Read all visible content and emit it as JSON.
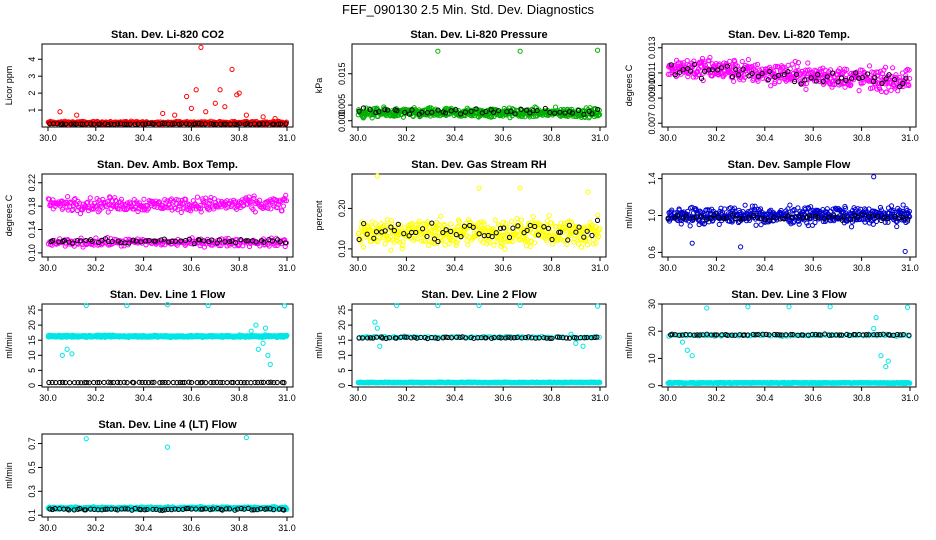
{
  "page": {
    "title": "FEF_090130  2.5 Min. Std. Dev. Diagnostics"
  },
  "chart_data": [
    {
      "type": "scatter",
      "title": "Stan. Dev. Li-820 CO2",
      "ylabel": "Licor ppm",
      "xlim": [
        30.0,
        31.0
      ],
      "ylim": [
        0.0,
        4.9
      ],
      "xticks": [
        30.0,
        30.2,
        30.4,
        30.6,
        30.8,
        31.0
      ],
      "yticks": [
        1,
        2,
        3,
        4
      ],
      "xtick_labels": [
        "30.0",
        "30.2",
        "30.4",
        "30.6",
        "30.8",
        "31.0"
      ],
      "ytick_labels": [
        "1",
        "2",
        "3",
        "4"
      ],
      "series": [
        {
          "name": "primary",
          "color": "#ff0000",
          "base": 0.25,
          "jitter": 0.12,
          "n": 420,
          "extra": [
            [
              30.05,
              0.9
            ],
            [
              30.12,
              0.7
            ],
            [
              30.48,
              0.8
            ],
            [
              30.53,
              0.7
            ],
            [
              30.58,
              1.8
            ],
            [
              30.6,
              1.1
            ],
            [
              30.62,
              2.2
            ],
            [
              30.64,
              4.7
            ],
            [
              30.66,
              0.9
            ],
            [
              30.7,
              1.4
            ],
            [
              30.72,
              2.2
            ],
            [
              30.74,
              1.2
            ],
            [
              30.77,
              3.4
            ],
            [
              30.79,
              1.9
            ],
            [
              30.8,
              2.0
            ],
            [
              30.83,
              0.7
            ],
            [
              30.9,
              0.6
            ],
            [
              30.95,
              0.5
            ]
          ]
        },
        {
          "name": "secondary",
          "color": "#000000",
          "base": 0.18,
          "jitter": 0.04,
          "n": 70
        }
      ]
    },
    {
      "type": "scatter",
      "title": "Stan. Dev. Li-820 Pressure",
      "ylabel": "kPa",
      "xlim": [
        30.0,
        31.0
      ],
      "ylim": [
        -0.002,
        0.0245
      ],
      "xticks": [
        30.0,
        30.2,
        30.4,
        30.6,
        30.8,
        31.0
      ],
      "yticks": [
        0.0,
        0.005,
        0.015
      ],
      "xtick_labels": [
        "30.0",
        "30.2",
        "30.4",
        "30.6",
        "30.8",
        "31.0"
      ],
      "ytick_labels": [
        "0.000",
        "0.005",
        "0.015"
      ],
      "series": [
        {
          "name": "primary",
          "color": "#00b000",
          "base": 0.0025,
          "jitter": 0.0022,
          "n": 520,
          "extra": [
            [
              30.33,
              0.0222
            ],
            [
              30.67,
              0.0222
            ],
            [
              30.99,
              0.0225
            ]
          ]
        },
        {
          "name": "secondary",
          "color": "#000000",
          "base": 0.003,
          "jitter": 0.0015,
          "n": 50
        }
      ]
    },
    {
      "type": "scatter",
      "title": "Stan. Dev. Li-820 Temp.",
      "ylabel": "degrees C",
      "xlim": [
        30.0,
        31.0
      ],
      "ylim": [
        0.0067,
        0.0133
      ],
      "xticks": [
        30.0,
        30.2,
        30.4,
        30.6,
        30.8,
        31.0
      ],
      "yticks": [
        0.007,
        0.009,
        0.01,
        0.011,
        0.013
      ],
      "xtick_labels": [
        "30.0",
        "30.2",
        "30.4",
        "30.6",
        "30.8",
        "31.0"
      ],
      "ytick_labels": [
        "0.007",
        "0.009",
        "0.010",
        "0.011",
        "0.013"
      ],
      "series": [
        {
          "name": "primary",
          "color": "#ff00ff",
          "base": 0.0115,
          "jitter": 0.0013,
          "n": 480,
          "drift": -0.0012
        },
        {
          "name": "secondary",
          "color": "#000000",
          "base": 0.0112,
          "jitter": 0.0009,
          "n": 55,
          "drift": -0.0008
        }
      ]
    },
    {
      "type": "scatter",
      "title": "Stan. Dev. Amb. Box Temp.",
      "ylabel": "degrees C",
      "xlim": [
        30.0,
        31.0
      ],
      "ylim": [
        0.093,
        0.235
      ],
      "xticks": [
        30.0,
        30.2,
        30.4,
        30.6,
        30.8,
        31.0
      ],
      "yticks": [
        0.1,
        0.14,
        0.18,
        0.22
      ],
      "xtick_labels": [
        "30.0",
        "30.2",
        "30.4",
        "30.6",
        "30.8",
        "31.0"
      ],
      "ytick_labels": [
        "0.10",
        "0.14",
        "0.18",
        "0.22"
      ],
      "series": [
        {
          "name": "primary",
          "color": "#ff00ff",
          "base": 0.183,
          "jitter": 0.018,
          "n": 320
        },
        {
          "name": "secondary",
          "color": "#ff00ff",
          "base": 0.118,
          "jitter": 0.01,
          "n": 240
        },
        {
          "name": "black",
          "color": "#000000",
          "base": 0.12,
          "jitter": 0.007,
          "n": 60
        }
      ]
    },
    {
      "type": "scatter",
      "title": "Stan. Dev. Gas Stream RH",
      "ylabel": "percent",
      "xlim": [
        30.0,
        31.0
      ],
      "ylim": [
        0.08,
        0.285
      ],
      "xticks": [
        30.0,
        30.2,
        30.4,
        30.6,
        30.8,
        31.0
      ],
      "yticks": [
        0.1,
        0.2
      ],
      "xtick_labels": [
        "30.0",
        "30.2",
        "30.4",
        "30.6",
        "30.8",
        "31.0"
      ],
      "ytick_labels": [
        "0.10",
        "0.20"
      ],
      "series": [
        {
          "name": "primary",
          "color": "#ffff00",
          "base": 0.14,
          "jitter": 0.05,
          "n": 480,
          "extra": [
            [
              30.08,
              0.28
            ],
            [
              30.5,
              0.25
            ],
            [
              30.95,
              0.24
            ],
            [
              30.67,
              0.25
            ]
          ]
        },
        {
          "name": "secondary",
          "color": "#000000",
          "base": 0.14,
          "jitter": 0.04,
          "n": 55
        }
      ]
    },
    {
      "type": "scatter",
      "title": "Stan. Dev. Sample Flow",
      "ylabel": "ml/min",
      "xlim": [
        30.0,
        31.0
      ],
      "ylim": [
        0.55,
        1.45
      ],
      "xticks": [
        30.0,
        30.2,
        30.4,
        30.6,
        30.8,
        31.0
      ],
      "yticks": [
        0.6,
        1.0,
        1.4
      ],
      "xtick_labels": [
        "30.0",
        "30.2",
        "30.4",
        "30.6",
        "30.8",
        "31.0"
      ],
      "ytick_labels": [
        "0.6",
        "1.0",
        "1.4"
      ],
      "series": [
        {
          "name": "primary",
          "color": "#0000d0",
          "base": 1.0,
          "jitter": 0.13,
          "n": 540,
          "extra": [
            [
              30.85,
              1.42
            ],
            [
              30.1,
              0.7
            ],
            [
              30.3,
              0.66
            ],
            [
              30.98,
              0.61
            ]
          ]
        },
        {
          "name": "secondary",
          "color": "#000000",
          "base": 0.98,
          "jitter": 0.05,
          "n": 55
        }
      ]
    },
    {
      "type": "scatter",
      "title": "Stan. Dev. Line 1 Flow",
      "ylabel": "ml/min",
      "xlim": [
        30.0,
        31.0
      ],
      "ylim": [
        -0.5,
        27
      ],
      "xticks": [
        30.0,
        30.2,
        30.4,
        30.6,
        30.8,
        31.0
      ],
      "yticks": [
        0,
        5,
        10,
        15,
        20,
        25
      ],
      "xtick_labels": [
        "30.0",
        "30.2",
        "30.4",
        "30.6",
        "30.8",
        "31.0"
      ],
      "ytick_labels": [
        "0",
        "5",
        "10",
        "15",
        "20",
        "25"
      ],
      "series": [
        {
          "name": "primary",
          "color": "#00e5e5",
          "base": 16.3,
          "jitter": 0.5,
          "n": 560,
          "extra": [
            [
              30.16,
              26.5
            ],
            [
              30.33,
              26.5
            ],
            [
              30.5,
              26.8
            ],
            [
              30.67,
              26.5
            ],
            [
              30.99,
              26.4
            ],
            [
              30.08,
              12
            ],
            [
              30.1,
              10.5
            ],
            [
              30.06,
              10
            ],
            [
              30.85,
              18
            ],
            [
              30.87,
              20
            ],
            [
              30.9,
              14
            ],
            [
              30.92,
              10
            ],
            [
              30.93,
              7
            ],
            [
              30.88,
              12
            ],
            [
              30.91,
              19
            ]
          ]
        },
        {
          "name": "secondary",
          "color": "#000000",
          "base": 1.0,
          "jitter": 0.1,
          "n": 70
        }
      ]
    },
    {
      "type": "scatter",
      "title": "Stan. Dev. Line 2 Flow",
      "ylabel": "ml/min",
      "xlim": [
        30.0,
        31.0
      ],
      "ylim": [
        -0.5,
        27
      ],
      "xticks": [
        30.0,
        30.2,
        30.4,
        30.6,
        30.8,
        31.0
      ],
      "yticks": [
        0,
        5,
        10,
        15,
        20,
        25
      ],
      "xtick_labels": [
        "30.0",
        "30.2",
        "30.4",
        "30.6",
        "30.8",
        "31.0"
      ],
      "ytick_labels": [
        "0",
        "5",
        "10",
        "15",
        "20",
        "25"
      ],
      "series": [
        {
          "name": "primary",
          "color": "#00e5e5",
          "base": 1.0,
          "jitter": 0.2,
          "n": 520,
          "extra": [
            [
              30.16,
              26.5
            ],
            [
              30.33,
              26.5
            ],
            [
              30.5,
              26.5
            ],
            [
              30.67,
              26.5
            ],
            [
              30.99,
              26.3
            ],
            [
              30.08,
              19
            ],
            [
              30.07,
              21
            ],
            [
              30.09,
              13
            ],
            [
              30.88,
              17
            ],
            [
              30.9,
              14
            ],
            [
              30.93,
              13
            ]
          ]
        },
        {
          "name": "teal",
          "color": "#00e5e5",
          "base": 16.0,
          "jitter": 0.4,
          "n": 90
        },
        {
          "name": "secondary",
          "color": "#000000",
          "base": 15.8,
          "jitter": 0.4,
          "n": 70
        }
      ]
    },
    {
      "type": "scatter",
      "title": "Stan. Dev. Line 3 Flow",
      "ylabel": "ml/min",
      "xlim": [
        30.0,
        31.0
      ],
      "ylim": [
        -0.5,
        30
      ],
      "xticks": [
        30.0,
        30.2,
        30.4,
        30.6,
        30.8,
        31.0
      ],
      "yticks": [
        0,
        10,
        20,
        30
      ],
      "xtick_labels": [
        "30.0",
        "30.2",
        "30.4",
        "30.6",
        "30.8",
        "31.0"
      ],
      "ytick_labels": [
        "0",
        "10",
        "20",
        "30"
      ],
      "series": [
        {
          "name": "primary",
          "color": "#00e5e5",
          "base": 1.0,
          "jitter": 0.25,
          "n": 520,
          "extra": [
            [
              30.16,
              28.5
            ],
            [
              30.33,
              29
            ],
            [
              30.5,
              29
            ],
            [
              30.67,
              29
            ],
            [
              30.99,
              28.8
            ],
            [
              30.08,
              13
            ],
            [
              30.1,
              11
            ],
            [
              30.06,
              16
            ],
            [
              30.88,
              11
            ],
            [
              30.9,
              7
            ],
            [
              30.91,
              9
            ],
            [
              30.86,
              25
            ],
            [
              30.85,
              21
            ]
          ]
        },
        {
          "name": "teal",
          "color": "#00e5e5",
          "base": 18.5,
          "jitter": 0.5,
          "n": 90
        },
        {
          "name": "secondary",
          "color": "#000000",
          "base": 18.7,
          "jitter": 0.3,
          "n": 70
        }
      ]
    },
    {
      "type": "scatter",
      "title": "Stan. Dev. Line 4 (LT) Flow",
      "ylabel": "ml/min",
      "xlim": [
        30.0,
        31.0
      ],
      "ylim": [
        0.085,
        0.78
      ],
      "xticks": [
        30.0,
        30.2,
        30.4,
        30.6,
        30.8,
        31.0
      ],
      "yticks": [
        0.1,
        0.3,
        0.5,
        0.7
      ],
      "xtick_labels": [
        "30.0",
        "30.2",
        "30.4",
        "30.6",
        "30.8",
        "31.0"
      ],
      "ytick_labels": [
        "0.1",
        "0.3",
        "0.5",
        "0.7"
      ],
      "series": [
        {
          "name": "primary",
          "color": "#00e5e5",
          "base": 0.16,
          "jitter": 0.015,
          "n": 560,
          "extra": [
            [
              30.16,
              0.74
            ],
            [
              30.5,
              0.67
            ],
            [
              30.83,
              0.75
            ]
          ]
        },
        {
          "name": "secondary",
          "color": "#000000",
          "base": 0.15,
          "jitter": 0.012,
          "n": 70
        }
      ]
    }
  ]
}
